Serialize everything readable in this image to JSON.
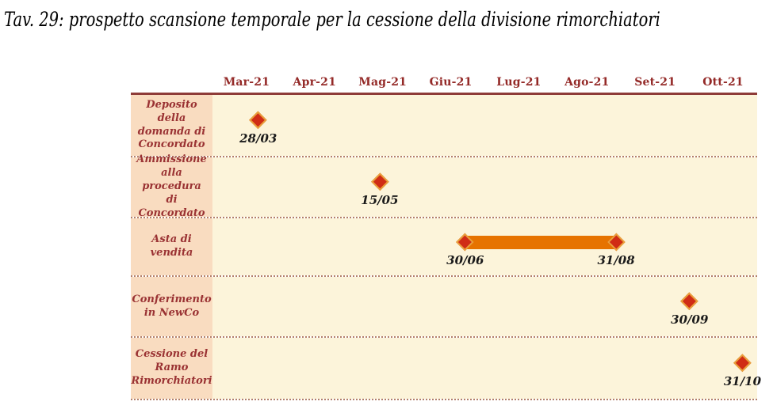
{
  "title": "Tav. 29: prospetto scansione temporale per la cessione della divisione rimorchiatori",
  "colors": {
    "line": "#8e3b38",
    "header_text": "#942a28",
    "label_bg": "#f9dcc0",
    "label_text": "#9a3233",
    "chart_bg": "#fcf4da",
    "separator": "#b3806b",
    "milestone": "#d02c15",
    "milestone_rim": "#e9a13b",
    "bar": "#e67300",
    "date_text": "#1a1a1a"
  },
  "chart_data": {
    "type": "gantt-timeline",
    "title": "Tav. 29: prospetto scansione temporale per la cessione della divisione rimorchiatori",
    "x_axis": {
      "unit": "month",
      "range": [
        "Mar-21",
        "Ott-21"
      ],
      "position": "top",
      "grid": false
    },
    "columns": [
      "Mar-21",
      "Apr-21",
      "Mag-21",
      "Giu-21",
      "Lug-21",
      "Ago-21",
      "Set-21",
      "Ott-21"
    ],
    "rows": [
      {
        "label": "Deposito della domanda di Concordato",
        "milestones": [
          {
            "date": "28/03",
            "pos_pct": 8.4
          }
        ]
      },
      {
        "label": "Ammissione alla procedura di Concordato",
        "milestones": [
          {
            "date": "15/05",
            "pos_pct": 30.7
          }
        ]
      },
      {
        "label": "Asta di vendita",
        "bar": {
          "start_date": "30/06",
          "end_date": "31/08",
          "start_pos_pct": 46.4,
          "end_pos_pct": 74.1
        }
      },
      {
        "label": "Conferimento in NewCo",
        "milestones": [
          {
            "date": "30/09",
            "pos_pct": 87.6
          }
        ]
      },
      {
        "label": "Cessione del Ramo Rimorchiatori",
        "milestones": [
          {
            "date": "31/10",
            "pos_pct": 97.3
          }
        ]
      }
    ]
  }
}
